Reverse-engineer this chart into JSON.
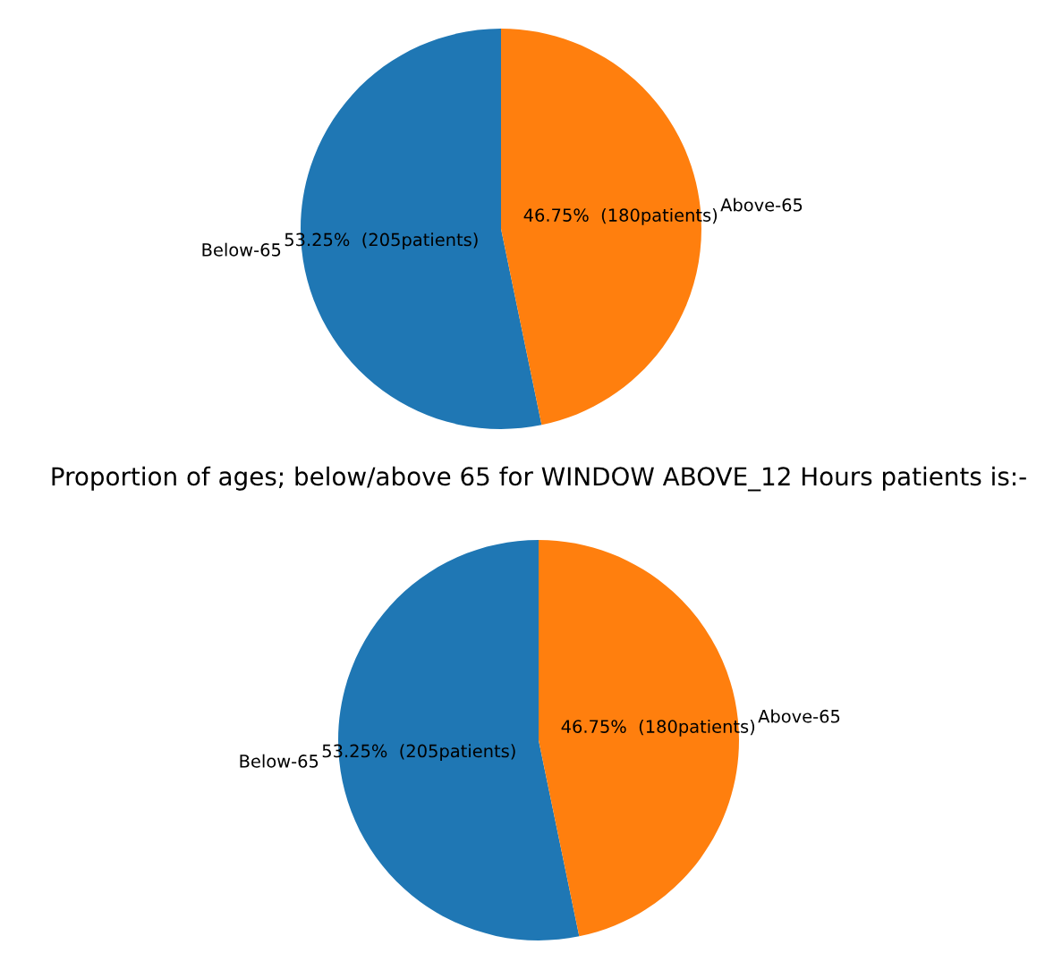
{
  "chart_data": [
    {
      "type": "pie",
      "categories": [
        "Below-65",
        "Above-65"
      ],
      "values": [
        205,
        180
      ],
      "colors": [
        "#1f77b4",
        "#ff7f0e"
      ],
      "value_labels": [
        "53.25%  (205patients)",
        "46.75%  (180patients)"
      ]
    },
    {
      "type": "pie",
      "title": "Proportion of ages; below/above 65 for WINDOW ABOVE_12 Hours patients is:-",
      "categories": [
        "Below-65",
        "Above-65"
      ],
      "values": [
        205,
        180
      ],
      "colors": [
        "#1f77b4",
        "#ff7f0e"
      ],
      "value_labels": [
        "53.25%  (205patients)",
        "46.75%  (180patients)"
      ]
    }
  ]
}
